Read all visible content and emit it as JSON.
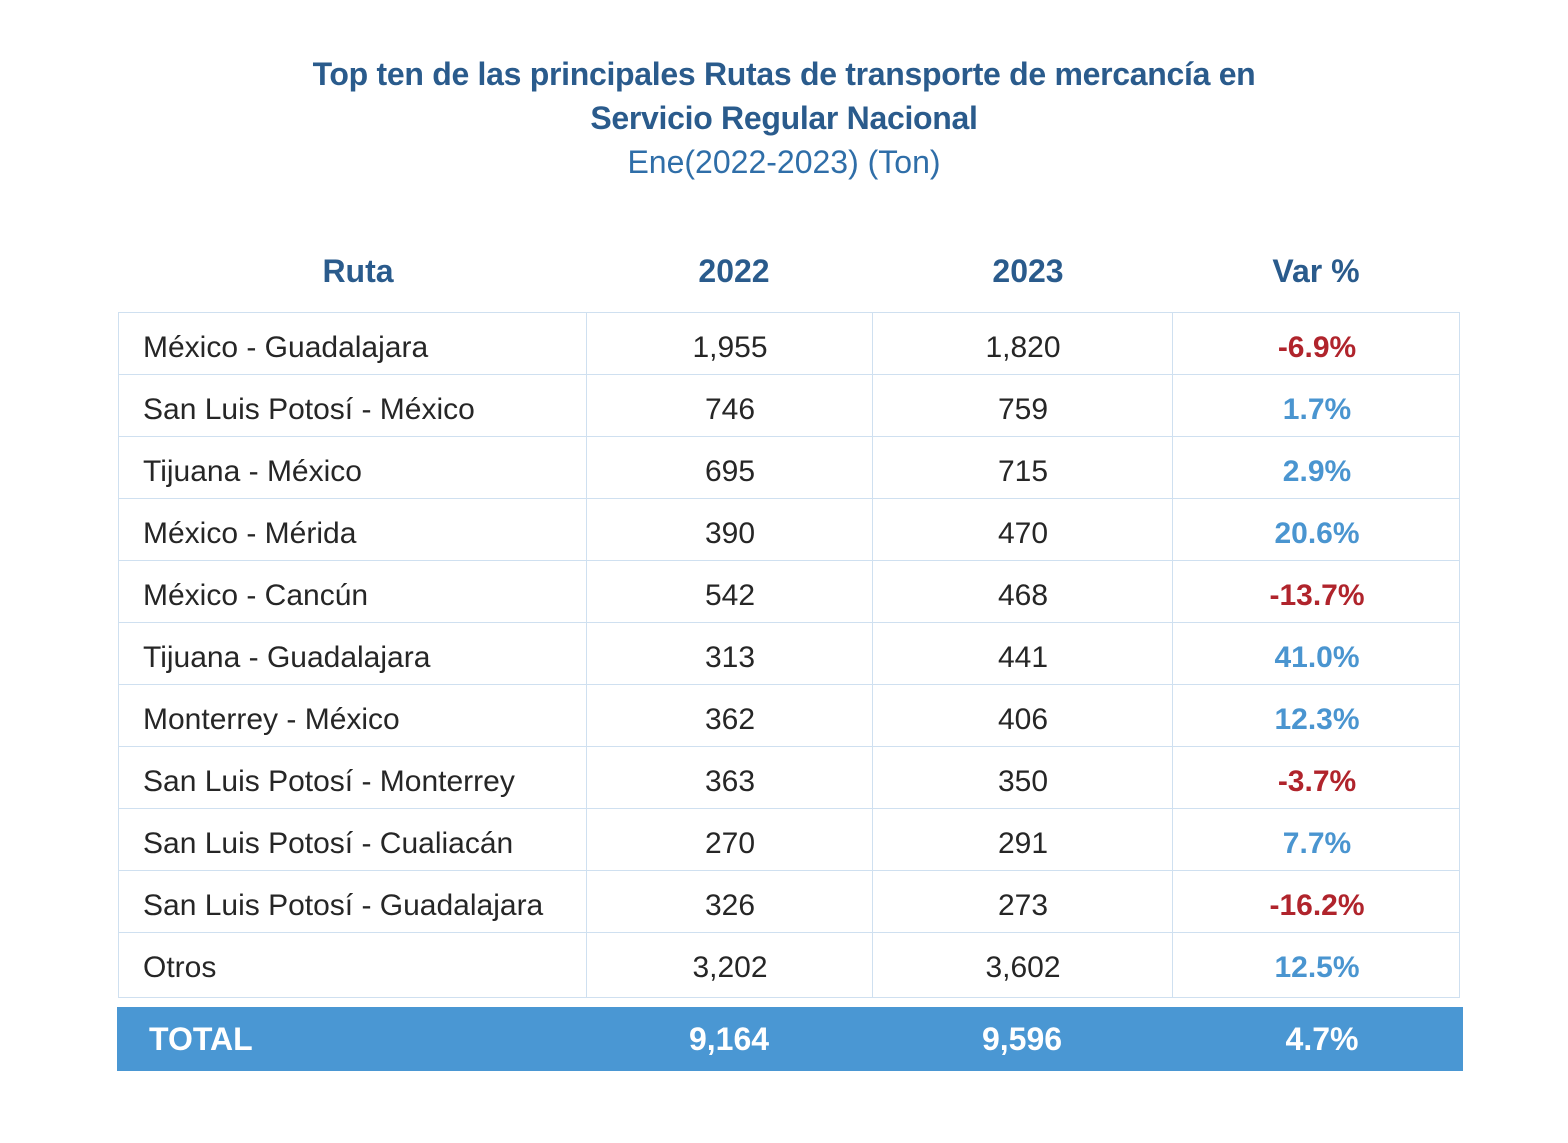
{
  "chart_data": {
    "type": "table",
    "title": "Top ten de las principales Rutas de transporte de mercancía en Servicio Regular Nacional",
    "title_lines": [
      "Top ten de las principales Rutas de transporte de mercancía en",
      "Servicio Regular Nacional"
    ],
    "subtitle": "Ene(2022-2023) (Ton)",
    "columns": [
      "Ruta",
      "2022",
      "2023",
      "Var %"
    ],
    "rows": [
      {
        "route": "México - Guadalajara",
        "y2022": "1,955",
        "y2023": "1,820",
        "var": "-6.9%"
      },
      {
        "route": "San Luis Potosí - México",
        "y2022": "746",
        "y2023": "759",
        "var": "1.7%"
      },
      {
        "route": "Tijuana - México",
        "y2022": "695",
        "y2023": "715",
        "var": "2.9%"
      },
      {
        "route": "México - Mérida",
        "y2022": "390",
        "y2023": "470",
        "var": "20.6%"
      },
      {
        "route": "México - Cancún",
        "y2022": "542",
        "y2023": "468",
        "var": "-13.7%"
      },
      {
        "route": "Tijuana - Guadalajara",
        "y2022": "313",
        "y2023": "441",
        "var": "41.0%"
      },
      {
        "route": "Monterrey - México",
        "y2022": "362",
        "y2023": "406",
        "var": "12.3%"
      },
      {
        "route": "San Luis Potosí - Monterrey",
        "y2022": "363",
        "y2023": "350",
        "var": "-3.7%"
      },
      {
        "route": "San Luis Potosí - Cualiacán",
        "y2022": "270",
        "y2023": "291",
        "var": "7.7%"
      },
      {
        "route": "San Luis Potosí - Guadalajara",
        "y2022": "326",
        "y2023": "273",
        "var": "-16.2%"
      },
      {
        "route": "Otros",
        "y2022": "3,202",
        "y2023": "3,602",
        "var": "12.5%"
      }
    ],
    "total": {
      "label": "TOTAL",
      "y2022": "9,164",
      "y2023": "9,596",
      "var": "4.7%"
    }
  },
  "colors": {
    "title": "#2a5b8c",
    "negative": "#b0242c",
    "positive": "#4a95d0",
    "total_bg": "#4a97d3",
    "grid": "#cfe0f0"
  }
}
